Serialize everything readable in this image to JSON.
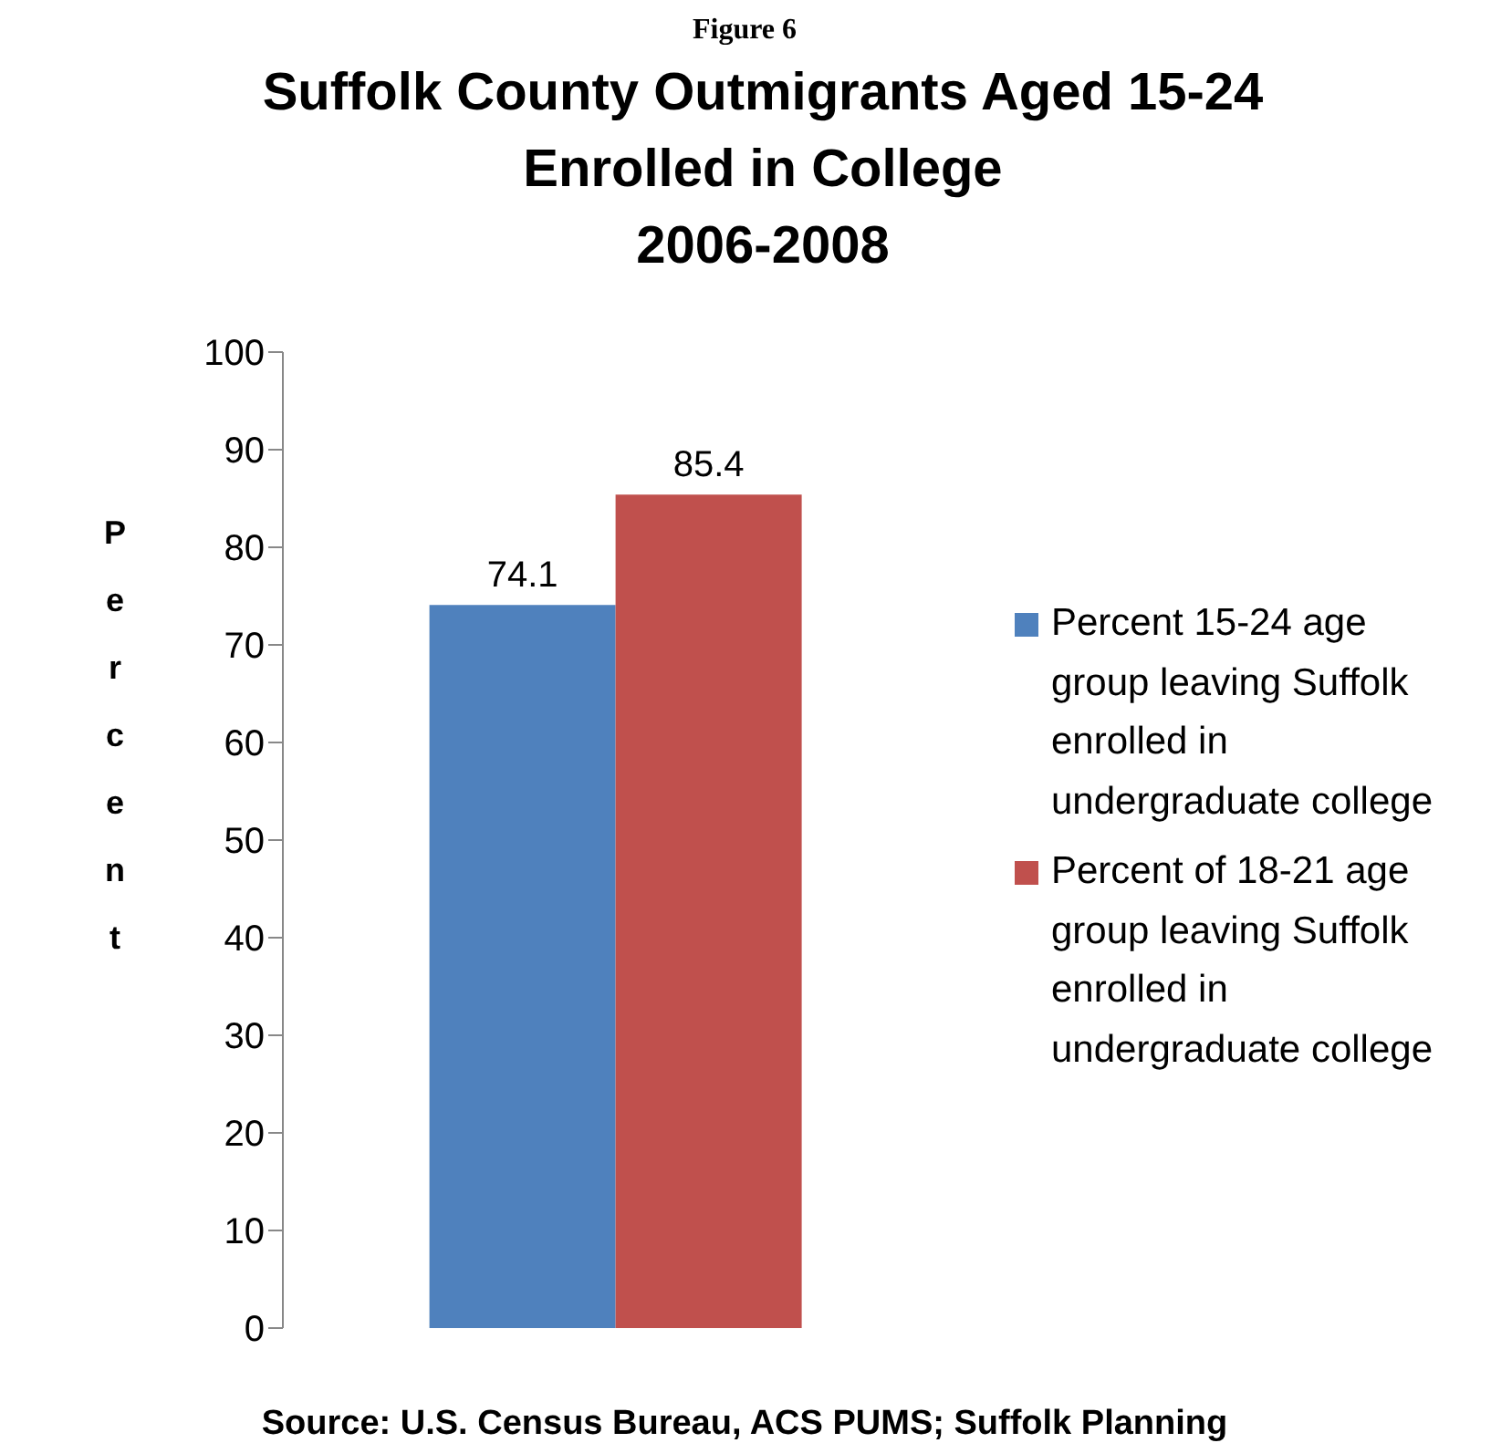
{
  "chart_data": {
    "type": "bar",
    "title": "Suffolk County Outmigrants Aged 15-24\nEnrolled in College\n2006-2008",
    "ylabel": "Percent",
    "categories": [
      null
    ],
    "series": [
      {
        "name": "Percent 15-24 age group leaving Suffolk enrolled in undergraduate college",
        "color": "#4f81bd",
        "values": [
          74.1
        ]
      },
      {
        "name": "Percent of 18-21 age group leaving Suffolk enrolled in undergraduate college",
        "color": "#c0504d",
        "values": [
          85.4
        ]
      }
    ],
    "ylim": [
      0,
      100
    ],
    "yticks": [
      0,
      10,
      20,
      30,
      40,
      50,
      60,
      70,
      80,
      90,
      100
    ],
    "grid": false,
    "legend": "right",
    "data_labels": true,
    "annotations": [
      "Figure 6",
      "Source: U.S. Census Bureau, ACS PUMS; Suffolk Planning"
    ]
  }
}
